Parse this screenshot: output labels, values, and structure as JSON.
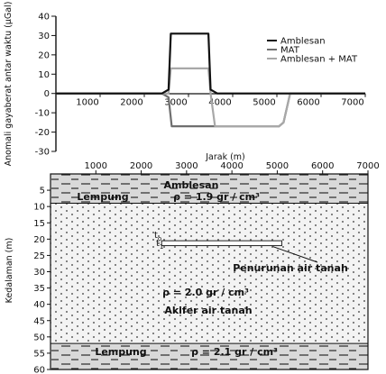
{
  "chart_data": [
    {
      "type": "line",
      "ylabel": "Anomali gayaberat antar waktu (µGal)",
      "xlabel": "Jarak (m)",
      "xlim": [
        0,
        7000
      ],
      "ylim": [
        -30,
        40
      ],
      "xticks": [
        "1000",
        "2000",
        "3000",
        "4000",
        "5000",
        "6000",
        "7000"
      ],
      "yticks": [
        "-30",
        "-20",
        "-10",
        "0",
        "10",
        "20",
        "30",
        "40"
      ],
      "legend_position": "right",
      "series": [
        {
          "name": "Amblesan",
          "color": "#111111",
          "x": [
            0,
            2400,
            2550,
            2600,
            3450,
            3500,
            3650,
            7000
          ],
          "y": [
            0,
            0,
            2,
            31,
            31,
            2,
            0,
            0
          ]
        },
        {
          "name": "MAT",
          "color": "#6f6f6f",
          "x": [
            0,
            2400,
            2550,
            2620,
            5050,
            5150,
            5300,
            7000
          ],
          "y": [
            0,
            0,
            -2,
            -17,
            -17,
            -15,
            0,
            0
          ]
        },
        {
          "name": "Amblesan + MAT",
          "color": "#a8a8a8",
          "x": [
            0,
            2400,
            2550,
            2600,
            3450,
            3500,
            3600,
            5050,
            5150,
            5300,
            7000
          ],
          "y": [
            0,
            0,
            0,
            13,
            13,
            0,
            -17,
            -17,
            -15,
            0,
            0
          ]
        }
      ]
    },
    {
      "type": "cross-section",
      "ylabel": "Kedalaman (m)",
      "xlim": [
        0,
        7000
      ],
      "ylim": [
        0,
        60
      ],
      "xticks": [
        "1000",
        "2000",
        "3000",
        "4000",
        "5000",
        "6000",
        "7000"
      ],
      "yticks": [
        "5",
        "10",
        "15",
        "20",
        "25",
        "30",
        "35",
        "40",
        "45",
        "50",
        "55",
        "60"
      ],
      "layers": [
        {
          "name": "Lempung",
          "top": 0,
          "bottom": 9,
          "label": "Lempung",
          "density": "ρ = 1.9 gr / cm³",
          "pattern": "dash"
        },
        {
          "name": "Akifer air tanah",
          "top": 9,
          "bottom": 52,
          "label": "Akifer air tanah",
          "density": "ρ = 2.0 gr / cm³",
          "pattern": "dot"
        },
        {
          "name": "Lempung",
          "top": 52,
          "bottom": 60,
          "label": "Lempung",
          "density": "ρ = 2.1 gr / cm³",
          "pattern": "dash"
        }
      ],
      "annotations": {
        "amblesan": "Amblesan",
        "penurunan": "Penurunan air tanah",
        "t0": "t",
        "t0_sub": "o",
        "t1": "t",
        "t1_sub": "1"
      },
      "drawdown_box": {
        "x_start": 2450,
        "x_end": 5100,
        "depth_top": 20.5,
        "depth_bottom": 22
      }
    }
  ]
}
